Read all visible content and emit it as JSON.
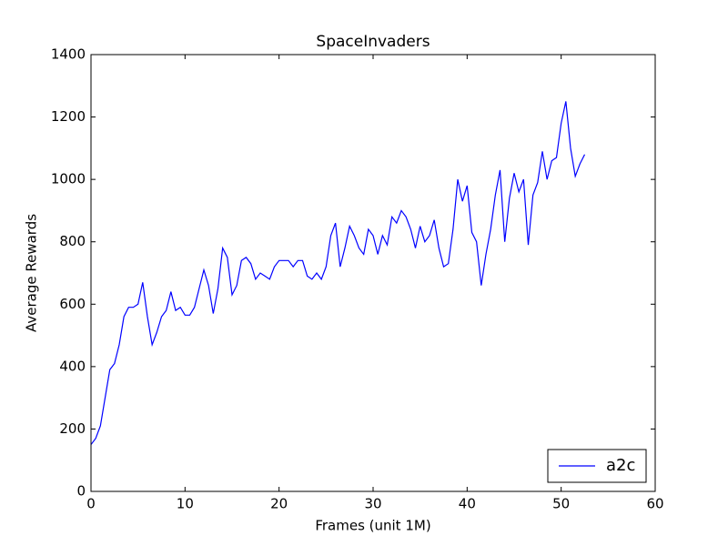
{
  "chart_data": {
    "type": "line",
    "title": "SpaceInvaders",
    "x_label": "Frames (unit 1M)",
    "y_label": "Average Rewards",
    "x": [
      0,
      0.5,
      1,
      1.5,
      2,
      2.5,
      3,
      3.5,
      4,
      4.5,
      5,
      5.5,
      6,
      6.5,
      7,
      7.5,
      8,
      8.5,
      9,
      9.5,
      10,
      10.5,
      11,
      11.5,
      12,
      12.5,
      13,
      13.5,
      14,
      14.5,
      15,
      15.5,
      16,
      16.5,
      17,
      17.5,
      18,
      18.5,
      19,
      19.5,
      20,
      20.5,
      21,
      21.5,
      22,
      22.5,
      23,
      23.5,
      24,
      24.5,
      25,
      25.5,
      26,
      26.5,
      27,
      27.5,
      28,
      28.5,
      29,
      29.5,
      30,
      30.5,
      31,
      31.5,
      32,
      32.5,
      33,
      33.5,
      34,
      34.5,
      35,
      35.5,
      36,
      36.5,
      37,
      37.5,
      38,
      38.5,
      39,
      39.5,
      40,
      40.5,
      41,
      41.5,
      42,
      42.5,
      43,
      43.5,
      44,
      44.5,
      45,
      45.5,
      46,
      46.5,
      47,
      47.5,
      48,
      48.5,
      49,
      49.5,
      50,
      50.5,
      51,
      51.5,
      52,
      52.5
    ],
    "series": [
      {
        "name": "a2c",
        "color": "#0000ff",
        "values": [
          150,
          170,
          210,
          300,
          390,
          410,
          470,
          560,
          590,
          590,
          600,
          670,
          560,
          470,
          510,
          560,
          580,
          640,
          580,
          590,
          565,
          565,
          590,
          650,
          710,
          660,
          570,
          650,
          780,
          750,
          630,
          660,
          740,
          750,
          730,
          680,
          700,
          690,
          680,
          720,
          740,
          740,
          740,
          720,
          740,
          740,
          690,
          680,
          700,
          680,
          720,
          820,
          860,
          720,
          780,
          850,
          820,
          780,
          760,
          840,
          820,
          760,
          820,
          790,
          880,
          860,
          900,
          880,
          840,
          780,
          850,
          800,
          820,
          870,
          780,
          720,
          730,
          840,
          1000,
          930,
          980,
          830,
          800,
          660,
          760,
          840,
          950,
          1030,
          800,
          940,
          1020,
          960,
          1000,
          790,
          950,
          990,
          1090,
          1000,
          1060,
          1070,
          1180,
          1250,
          1100,
          1010,
          1050,
          1080
        ]
      }
    ],
    "xlim": [
      0,
      60
    ],
    "xticks": [
      0,
      10,
      20,
      30,
      40,
      50,
      60
    ],
    "ylim": [
      0,
      1400
    ],
    "yticks": [
      0,
      200,
      400,
      600,
      800,
      1000,
      1200,
      1400
    ],
    "legend": "lower right",
    "grid": false
  }
}
